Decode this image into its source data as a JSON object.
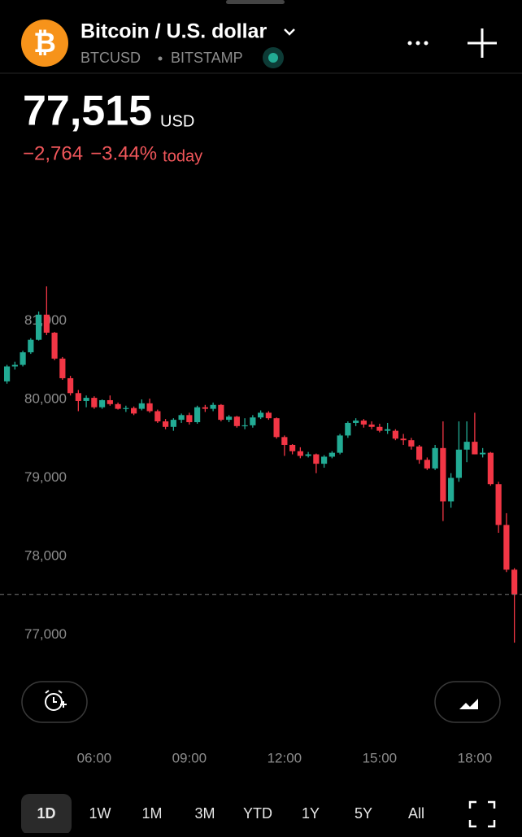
{
  "header": {
    "title": "Bitcoin / U.S. dollar",
    "symbol": "BTCUSD",
    "exchange": "BITSTAMP"
  },
  "quote": {
    "price": "77,515",
    "currency": "USD",
    "change": "−2,764",
    "change_percent": "−3.44%",
    "period": "today"
  },
  "chart_data": {
    "type": "candlestick",
    "x": [
      3.25,
      3.5,
      3.75,
      4.0,
      4.25,
      4.5,
      4.75,
      5.0,
      5.25,
      5.5,
      5.75,
      6.0,
      6.25,
      6.5,
      6.75,
      7.0,
      7.25,
      7.5,
      7.75,
      8.0,
      8.25,
      8.5,
      8.75,
      9.0,
      9.25,
      9.5,
      9.75,
      10.0,
      10.25,
      10.5,
      10.75,
      11.0,
      11.25,
      11.5,
      11.75,
      12.0,
      12.25,
      12.5,
      12.75,
      13.0,
      13.25,
      13.5,
      13.75,
      14.0,
      14.25,
      14.5,
      14.75,
      15.0,
      15.25,
      15.5,
      15.75,
      16.0,
      16.25,
      16.5,
      16.75,
      17.0,
      17.25,
      17.5,
      17.75,
      18.0,
      18.25,
      18.5,
      18.75,
      19.0,
      19.25
    ],
    "open": [
      80230,
      80420,
      80440,
      80600,
      80760,
      81080,
      80850,
      80520,
      80270,
      80080,
      79980,
      80020,
      79900,
      79990,
      79940,
      79880,
      79890,
      79880,
      79950,
      79850,
      79720,
      79650,
      79740,
      79800,
      79710,
      79900,
      79880,
      79930,
      79740,
      79780,
      79660,
      79670,
      79770,
      79830,
      79760,
      79520,
      79420,
      79340,
      79280,
      79300,
      79180,
      79270,
      79320,
      79540,
      79700,
      79730,
      79680,
      79650,
      79600,
      79600,
      79500,
      79480,
      79400,
      79230,
      79120,
      79380,
      78700,
      79000,
      79360,
      79460,
      79300,
      79320,
      78920,
      78400,
      77830
    ],
    "high": [
      80440,
      80480,
      80620,
      80780,
      81120,
      81440,
      80860,
      80540,
      80300,
      80120,
      80050,
      80040,
      80000,
      80050,
      79960,
      79920,
      79910,
      80000,
      80010,
      79870,
      79750,
      79760,
      79820,
      79830,
      79920,
      79930,
      79960,
      79940,
      79800,
      79790,
      79760,
      79800,
      79860,
      79850,
      79770,
      79540,
      79430,
      79390,
      79330,
      79310,
      79290,
      79340,
      79560,
      79720,
      79760,
      79750,
      79720,
      79690,
      79700,
      79620,
      79560,
      79510,
      79420,
      79260,
      79420,
      79720,
      79060,
      79720,
      79720,
      79830,
      79380,
      79330,
      78950,
      78550,
      77850
    ],
    "low": [
      80200,
      80380,
      80420,
      80580,
      80750,
      80820,
      80500,
      80250,
      80050,
      79850,
      79900,
      79880,
      79880,
      79920,
      79870,
      79840,
      79800,
      79860,
      79830,
      79700,
      79620,
      79600,
      79700,
      79680,
      79690,
      79840,
      79850,
      79720,
      79710,
      79640,
      79620,
      79640,
      79750,
      79740,
      79500,
      79280,
      79300,
      79250,
      79260,
      79060,
      79130,
      79250,
      79300,
      79510,
      79660,
      79640,
      79620,
      79580,
      79560,
      79480,
      79420,
      79360,
      79180,
      79100,
      79100,
      78450,
      78620,
      78950,
      79200,
      79300,
      79260,
      78900,
      78300,
      77800,
      76900
    ],
    "close": [
      80420,
      80440,
      80600,
      80760,
      81080,
      80850,
      80520,
      80270,
      80080,
      79980,
      80020,
      79900,
      79990,
      79940,
      79880,
      79890,
      79820,
      79950,
      79850,
      79720,
      79650,
      79740,
      79800,
      79710,
      79900,
      79880,
      79930,
      79740,
      79780,
      79660,
      79670,
      79770,
      79830,
      79760,
      79520,
      79420,
      79340,
      79280,
      79300,
      79180,
      79270,
      79320,
      79540,
      79700,
      79730,
      79680,
      79650,
      79600,
      79620,
      79500,
      79480,
      79400,
      79230,
      79120,
      79380,
      78700,
      79000,
      79360,
      79460,
      79300,
      79320,
      78920,
      78400,
      77830,
      77515
    ],
    "up_color": "#22ab94",
    "down_color": "#f23645",
    "ylim": [
      76590,
      81980
    ],
    "yticks": [
      {
        "value": 77000,
        "label": "77,000"
      },
      {
        "value": 78000,
        "label": "78,000"
      },
      {
        "value": 79000,
        "label": "79,000"
      },
      {
        "value": 80000,
        "label": "80,000"
      },
      {
        "value": 81000,
        "label": "81,000"
      }
    ],
    "xlim": [
      3.03,
      19.49
    ],
    "xticks": [
      {
        "value": 6,
        "label": "06:00"
      },
      {
        "value": 9,
        "label": "09:00"
      },
      {
        "value": 12,
        "label": "12:00"
      },
      {
        "value": 15,
        "label": "15:00"
      },
      {
        "value": 18,
        "label": "18:00"
      }
    ],
    "grid": false
  },
  "ranges": [
    "1D",
    "1W",
    "1M",
    "3M",
    "YTD",
    "1Y",
    "5Y",
    "All"
  ],
  "selected_range": 0
}
